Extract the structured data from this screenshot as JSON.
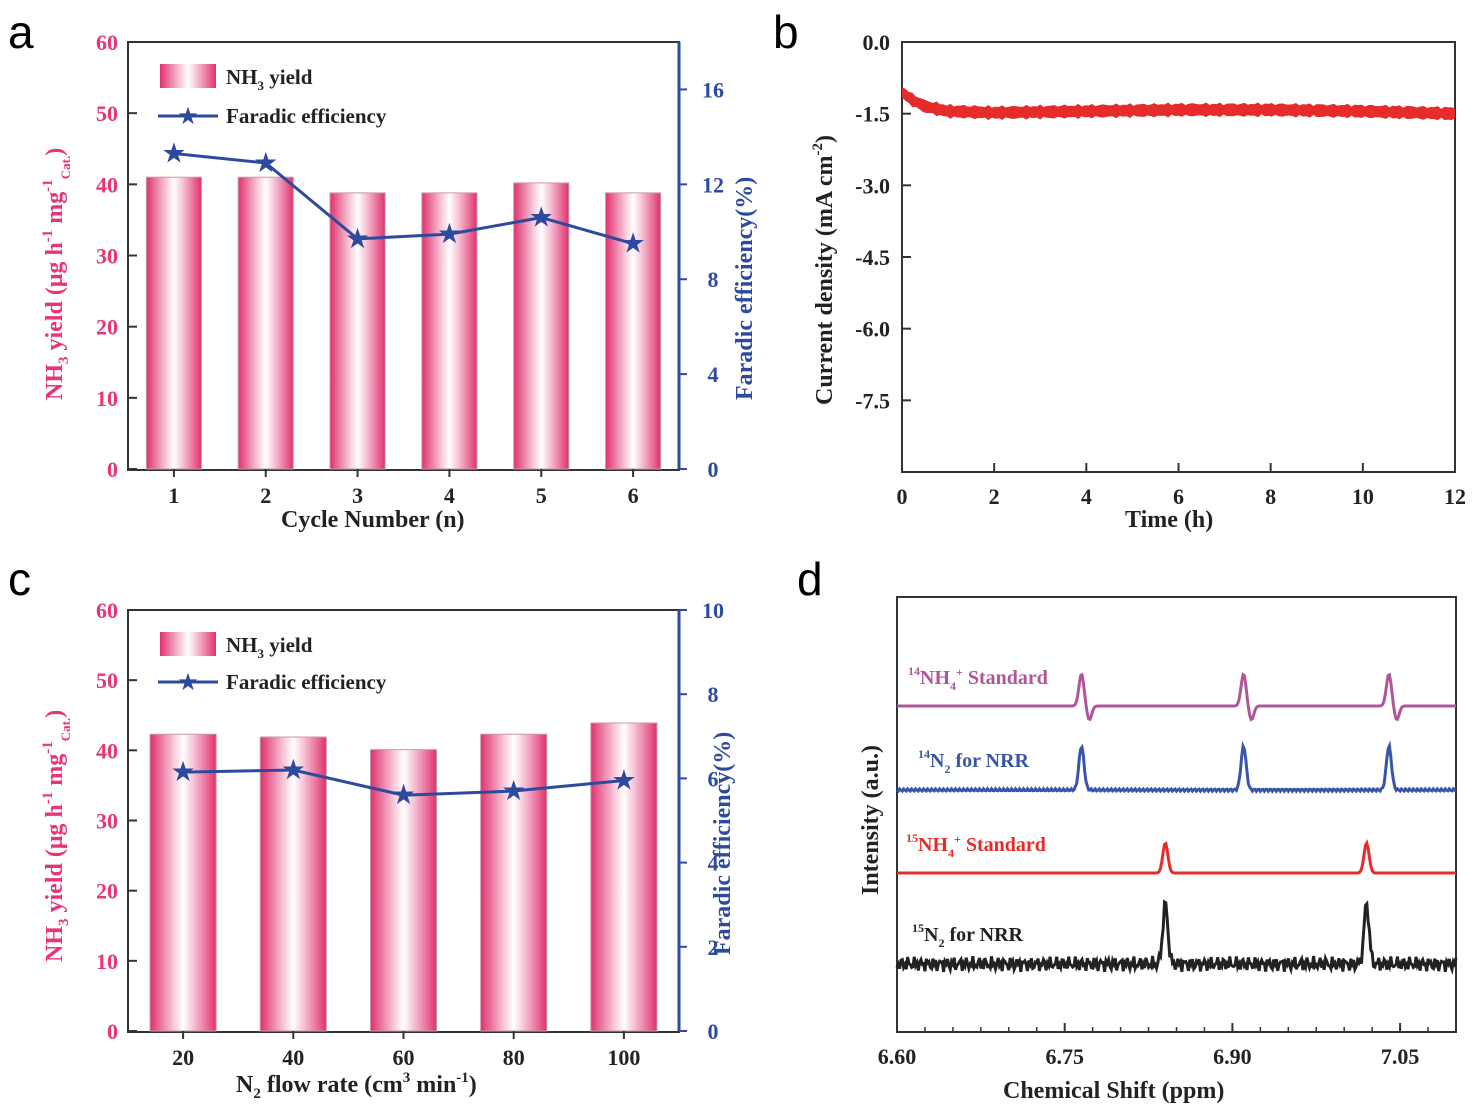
{
  "colors": {
    "pink": "#e8357a",
    "blue": "#2e4a9e",
    "red": "#e62b2b",
    "magenta": "#b0559a",
    "nrr_blue": "#3a55a8",
    "black": "#222222"
  },
  "chart_data": [
    {
      "panel": "a",
      "type": "bar",
      "xlabel": "Cycle Number (n)",
      "ylabel_left": "NH3 yield (μg h-1 mg-1 Cat.)",
      "ylabel_right": "Faradic efficiency(%)",
      "categories": [
        "1",
        "2",
        "3",
        "4",
        "5",
        "6"
      ],
      "ylim_left": [
        0,
        60
      ],
      "yticks_left": [
        "0",
        "10",
        "20",
        "30",
        "40",
        "50",
        "60"
      ],
      "ylim_right": [
        0,
        18
      ],
      "yticks_right": [
        "0",
        "4",
        "8",
        "12",
        "16"
      ],
      "series": [
        {
          "name": "NH3 yield",
          "axis": "left",
          "kind": "bar",
          "values": [
            41,
            41,
            38.8,
            38.8,
            40.2,
            38.8
          ]
        },
        {
          "name": "Faradic efficiency",
          "axis": "right",
          "kind": "line",
          "values": [
            13.3,
            12.9,
            9.7,
            9.9,
            10.6,
            9.5
          ]
        }
      ],
      "legend": [
        "NH3 yield",
        "Faradic efficiency"
      ],
      "legend_position": "top-left"
    },
    {
      "panel": "b",
      "type": "line",
      "xlabel": "Time (h)",
      "ylabel": "Current density (mA cm-2)",
      "xlim": [
        0,
        12
      ],
      "xticks": [
        "0",
        "2",
        "4",
        "6",
        "8",
        "10",
        "12"
      ],
      "ylim": [
        -9,
        0
      ],
      "yticks": [
        "0.0",
        "-1.5",
        "-3.0",
        "-4.5",
        "-6.0",
        "-7.5"
      ],
      "series": [
        {
          "name": "",
          "x": [
            0,
            0.2,
            0.5,
            1,
            2,
            4,
            6,
            8,
            10,
            12
          ],
          "values": [
            -1.05,
            -1.2,
            -1.35,
            -1.45,
            -1.48,
            -1.45,
            -1.42,
            -1.42,
            -1.45,
            -1.5
          ]
        }
      ]
    },
    {
      "panel": "c",
      "type": "bar",
      "xlabel": "N2 flow rate (cm3 min-1)",
      "ylabel_left": "NH3 yield (μg h-1 mg-1 Cat.)",
      "ylabel_right": "Faradic efficiency(%)",
      "categories": [
        "20",
        "40",
        "60",
        "80",
        "100"
      ],
      "ylim_left": [
        0,
        60
      ],
      "yticks_left": [
        "0",
        "10",
        "20",
        "30",
        "40",
        "50",
        "60"
      ],
      "ylim_right": [
        0,
        10
      ],
      "yticks_right": [
        "0",
        "2",
        "4",
        "6",
        "8",
        "10"
      ],
      "series": [
        {
          "name": "NH3 yield",
          "axis": "left",
          "kind": "bar",
          "values": [
            42.3,
            41.9,
            40.1,
            42.3,
            43.9
          ]
        },
        {
          "name": "Faradic efficiency",
          "axis": "right",
          "kind": "line",
          "values": [
            6.15,
            6.2,
            5.6,
            5.7,
            5.95
          ]
        }
      ],
      "legend": [
        "NH3 yield",
        "Faradic efficiency"
      ],
      "legend_position": "top-left"
    },
    {
      "panel": "d",
      "type": "line",
      "xlabel": "Chemical Shift (ppm)",
      "ylabel": "Intensity (a.u.)",
      "xlim": [
        6.6,
        7.1
      ],
      "xticks": [
        "6.60",
        "6.75",
        "6.90",
        "7.05"
      ],
      "series": [
        {
          "name": "14NH4+ Standard",
          "peaks_ppm": [
            6.765,
            6.91,
            7.04
          ]
        },
        {
          "name": "14N2 for NRR",
          "peaks_ppm": [
            6.765,
            6.91,
            7.04
          ]
        },
        {
          "name": "15NH4+ Standard",
          "peaks_ppm": [
            6.84,
            7.02
          ]
        },
        {
          "name": "15N2 for NRR",
          "peaks_ppm": [
            6.84,
            7.02
          ]
        }
      ]
    }
  ],
  "labels": {
    "panel_a": "a",
    "panel_b": "b",
    "panel_c": "c",
    "panel_d": "d",
    "a_legend_1": "NH",
    "a_legend_2": "Faradic efficiency",
    "c_legend_1": "NH",
    "c_legend_2": "Faradic efficiency",
    "a_xlabel": "Cycle Number (n)",
    "b_xlabel": "Time (h)",
    "c_xlabel_pre": "N",
    "c_xlabel_mid": " flow rate (cm",
    "c_xlabel_post": " min",
    "c_xlabel_end": ")",
    "yield_ylabel_pre": "NH",
    "yield_ylabel_mid": " yield (μg h",
    "yield_ylabel_mg": " mg",
    "yield_ylabel_end": ")",
    "fe_ylabel": "Faradic efficiency(%)",
    "b_ylabel_pre": "Current density (mA cm",
    "b_ylabel_end": ")",
    "d_ylabel": "Intensity (a.u.)",
    "d_xlabel": "Chemical Shift (ppm)",
    "d_s1_pre": "14",
    "d_s1_mid": "NH",
    "d_s1_sub": "4",
    "d_s1_sup": "+",
    "d_s1_end": " Standard",
    "d_s2_pre": "14",
    "d_s2_mid": "N",
    "d_s2_sub": "2",
    "d_s2_end": " for NRR",
    "d_s3_pre": "15",
    "d_s3_mid": "NH",
    "d_s3_sub": "4",
    "d_s3_sup": "+",
    "d_s3_end": " Standard",
    "d_s4_pre": "15",
    "d_s4_mid": "N",
    "d_s4_sub": "2",
    "d_s4_end": " for NRR",
    "sub3": "3",
    "sub2": "2",
    "sup_m1": "-1",
    "sup_m2": "-2",
    "sup_3": "3",
    "sub_cat": "Cat.",
    "legend_yield_end": " yield"
  }
}
